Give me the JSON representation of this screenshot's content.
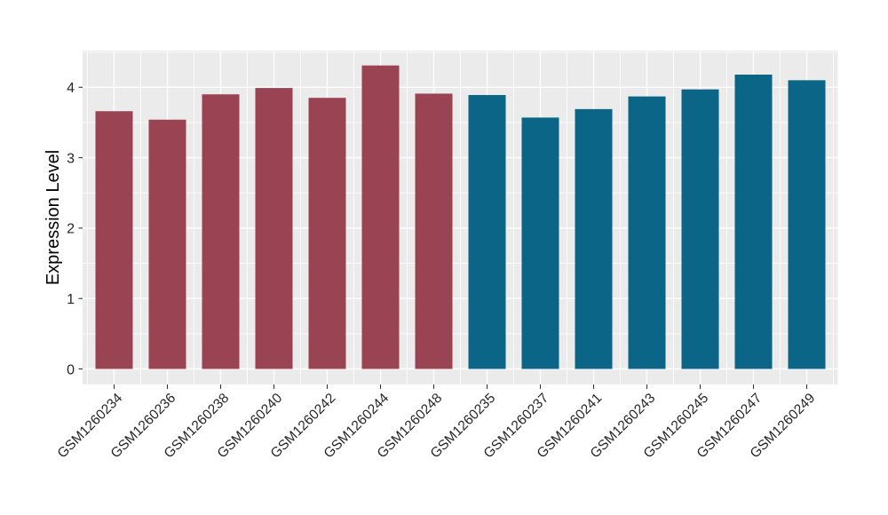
{
  "chart_data": {
    "type": "bar",
    "title": "",
    "xlabel": "",
    "ylabel": "Expression Level",
    "categories": [
      "GSM1260234",
      "GSM1260236",
      "GSM1260238",
      "GSM1260240",
      "GSM1260242",
      "GSM1260244",
      "GSM1260248",
      "GSM1260235",
      "GSM1260237",
      "GSM1260241",
      "GSM1260243",
      "GSM1260245",
      "GSM1260247",
      "GSM1260249"
    ],
    "values": [
      3.66,
      3.54,
      3.9,
      3.99,
      3.85,
      4.31,
      3.91,
      3.89,
      3.57,
      3.69,
      3.87,
      3.97,
      4.18,
      4.1
    ],
    "groups": [
      "group-1",
      "group-1",
      "group-1",
      "group-1",
      "group-1",
      "group-1",
      "group-1",
      "group-2",
      "group-2",
      "group-2",
      "group-2",
      "group-2",
      "group-2",
      "group-2"
    ],
    "group_colors": {
      "group-1": "#9A4353",
      "group-2": "#0B6586"
    },
    "y_ticks": [
      0,
      1,
      2,
      3,
      4
    ],
    "y_minor_ticks": [
      0.5,
      1.5,
      2.5,
      3.5,
      4.5
    ],
    "ylim": [
      -0.22,
      4.52
    ],
    "bar_width_ratio": 0.7,
    "x_label_rotation": -45,
    "legend": "none",
    "grid": {
      "show_major": true,
      "show_minor": true,
      "major_color": "#FFFFFF",
      "minor_color": "#FFFFFF"
    },
    "panel_background": "#EBEBEB",
    "figure_background": "#FFFFFF",
    "tick_color": "#333333",
    "tick_label_color": "#262626",
    "axis_title_color": "#000000"
  }
}
